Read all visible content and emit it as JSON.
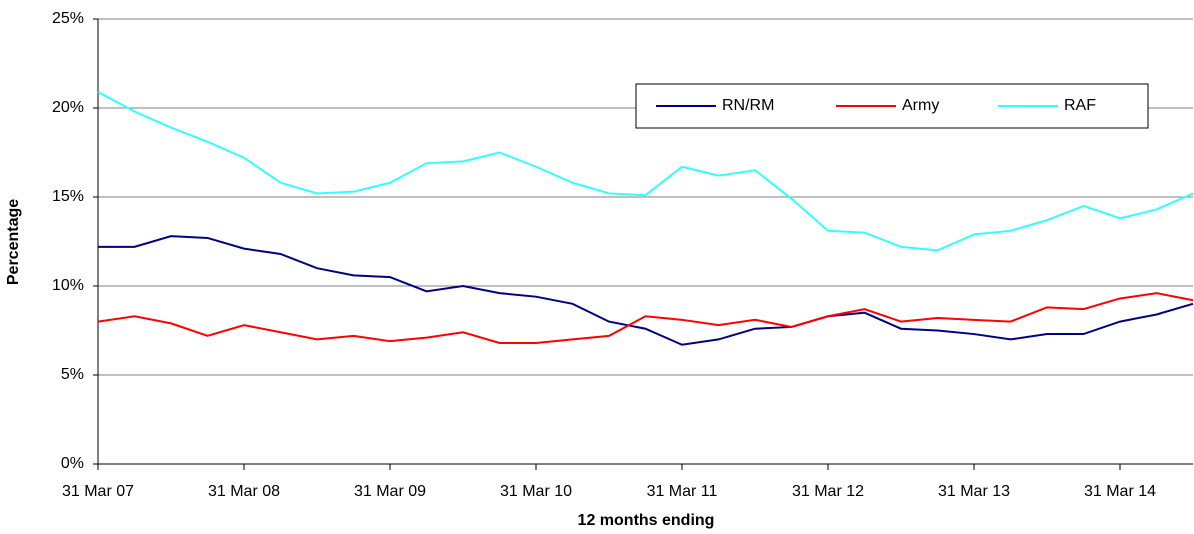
{
  "chart_data": {
    "type": "line",
    "x_label": "12 months ending",
    "y_label": "Percentage",
    "categories": [
      "31 Mar 07",
      null,
      null,
      null,
      "31 Mar 08",
      null,
      null,
      null,
      "31 Mar 09",
      null,
      null,
      null,
      "31 Mar 10",
      null,
      null,
      null,
      "31 Mar 11",
      null,
      null,
      null,
      "31 Mar 12",
      null,
      null,
      null,
      "31 Mar 13",
      null,
      null,
      null,
      "31 Mar 14",
      null,
      null
    ],
    "series": [
      {
        "name": "RN/RM",
        "color": "#000080",
        "values": [
          12.2,
          12.2,
          12.8,
          12.7,
          12.1,
          11.8,
          11.0,
          10.6,
          10.5,
          9.7,
          10.0,
          9.6,
          9.4,
          9.0,
          8.0,
          7.6,
          6.7,
          7.0,
          7.6,
          7.7,
          8.3,
          8.5,
          7.6,
          7.5,
          7.3,
          7.0,
          7.3,
          7.3,
          8.0,
          8.4,
          9.0
        ]
      },
      {
        "name": "Army",
        "color": "#ff0000",
        "values": [
          8.0,
          8.3,
          7.9,
          7.2,
          7.8,
          7.4,
          7.0,
          7.2,
          6.9,
          7.1,
          7.4,
          6.8,
          6.8,
          7.0,
          7.2,
          8.3,
          8.1,
          7.8,
          8.1,
          7.7,
          8.3,
          8.7,
          8.0,
          8.2,
          8.1,
          8.0,
          8.8,
          8.7,
          9.3,
          9.6,
          9.2
        ]
      },
      {
        "name": "RAF",
        "color": "#33ffff",
        "values": [
          20.9,
          19.8,
          18.9,
          18.1,
          17.2,
          15.8,
          15.2,
          15.3,
          15.8,
          16.9,
          17.0,
          17.5,
          16.7,
          15.8,
          15.2,
          15.1,
          16.7,
          16.2,
          16.5,
          14.9,
          13.1,
          13.0,
          12.2,
          12.0,
          12.9,
          13.1,
          13.7,
          14.5,
          13.8,
          14.3,
          15.2
        ]
      }
    ],
    "ylim": [
      0,
      25
    ],
    "yticks": [
      {
        "value": 0,
        "label": "0%"
      },
      {
        "value": 5,
        "label": "5%"
      },
      {
        "value": 10,
        "label": "10%"
      },
      {
        "value": 15,
        "label": "15%"
      },
      {
        "value": 20,
        "label": "20%"
      },
      {
        "value": 25,
        "label": "25%"
      }
    ],
    "grid": true,
    "legend": "top-right"
  }
}
